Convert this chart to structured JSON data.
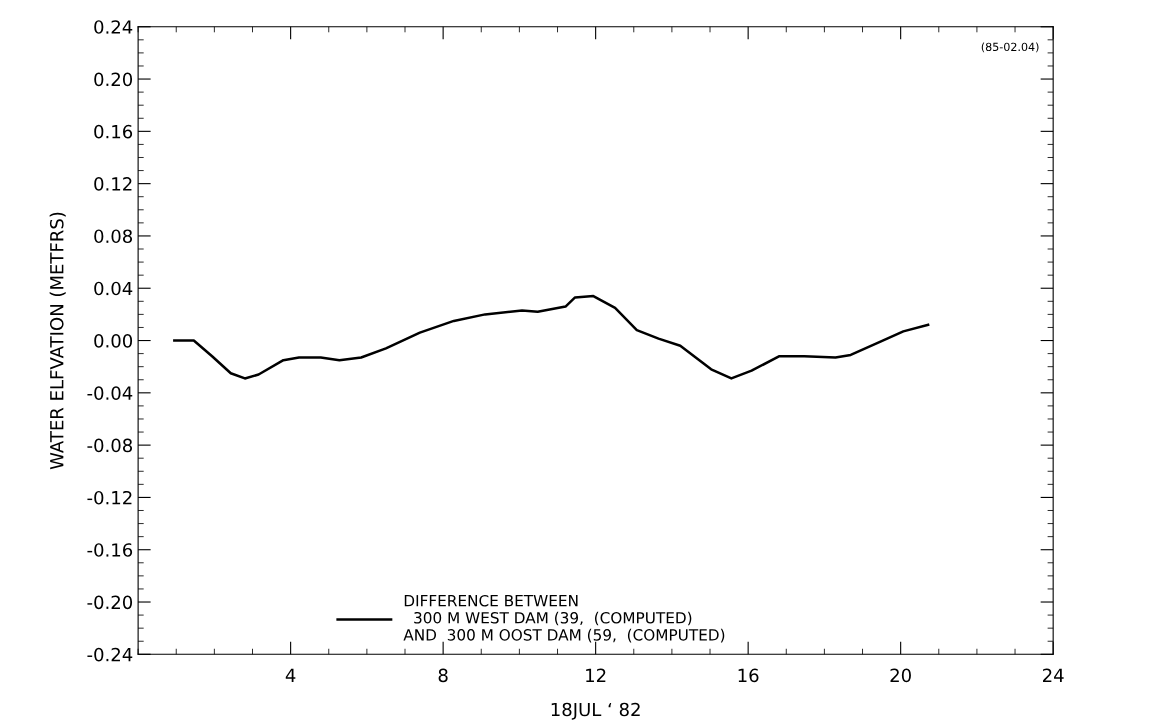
{
  "chart_data": {
    "type": "line",
    "xlabel": "18JUL ‘ 82",
    "ylabel": "WATER ELFVATION (METFRS)",
    "annotations": [
      "(85-02.04)"
    ],
    "xlim": [
      0,
      24
    ],
    "xticks": [
      4,
      8,
      12,
      16,
      20,
      24
    ],
    "ylim": [
      -0.24,
      0.24
    ],
    "yticks": [
      {
        "value": -0.24,
        "label": "-0.24"
      },
      {
        "value": -0.2,
        "label": "-0.20"
      },
      {
        "value": -0.16,
        "label": "-0.16"
      },
      {
        "value": -0.12,
        "label": "-0.12"
      },
      {
        "value": -0.08,
        "label": "-0.08"
      },
      {
        "value": -0.04,
        "label": "-0.04"
      },
      {
        "value": 0,
        "label": "0.00"
      },
      {
        "value": 0.04,
        "label": "0.04"
      },
      {
        "value": 0.08,
        "label": "0.08"
      },
      {
        "value": 0.12,
        "label": "0.12"
      },
      {
        "value": 0.16,
        "label": "0.16"
      },
      {
        "value": 0.2,
        "label": "0.20"
      },
      {
        "value": 0.24,
        "label": "0.24"
      }
    ],
    "grid": false,
    "legend": "bottom",
    "marker": "none",
    "line_style": "solid",
    "series": [
      {
        "name": "DIFFERENCE BETWEEN\n  300 M WEST DAM (39,  (COMPUTED)\nAND  300 M OOST DAM (59,  (COMPUTED)",
        "color": "#000000",
        "x": [
          0.95,
          1.46,
          1.94,
          2.43,
          2.8,
          3.16,
          3.81,
          4.22,
          4.79,
          5.28,
          5.85,
          6.5,
          7.39,
          8.28,
          9.1,
          10.07,
          10.48,
          11.21,
          11.46,
          11.94,
          12.51,
          13.08,
          13.65,
          14.22,
          15.03,
          15.56,
          16.09,
          16.82,
          17.47,
          18.29,
          18.69,
          19.5,
          20.07,
          20.72
        ],
        "values": [
          0.0,
          0.0,
          -0.012,
          -0.025,
          -0.029,
          -0.026,
          -0.015,
          -0.013,
          -0.013,
          -0.015,
          -0.013,
          -0.006,
          0.006,
          0.015,
          0.02,
          0.023,
          0.022,
          0.026,
          0.033,
          0.034,
          0.025,
          0.008,
          0.0015,
          -0.004,
          -0.022,
          -0.029,
          -0.023,
          -0.012,
          -0.012,
          -0.013,
          -0.011,
          -0.0005,
          0.007,
          0.012
        ]
      }
    ]
  }
}
